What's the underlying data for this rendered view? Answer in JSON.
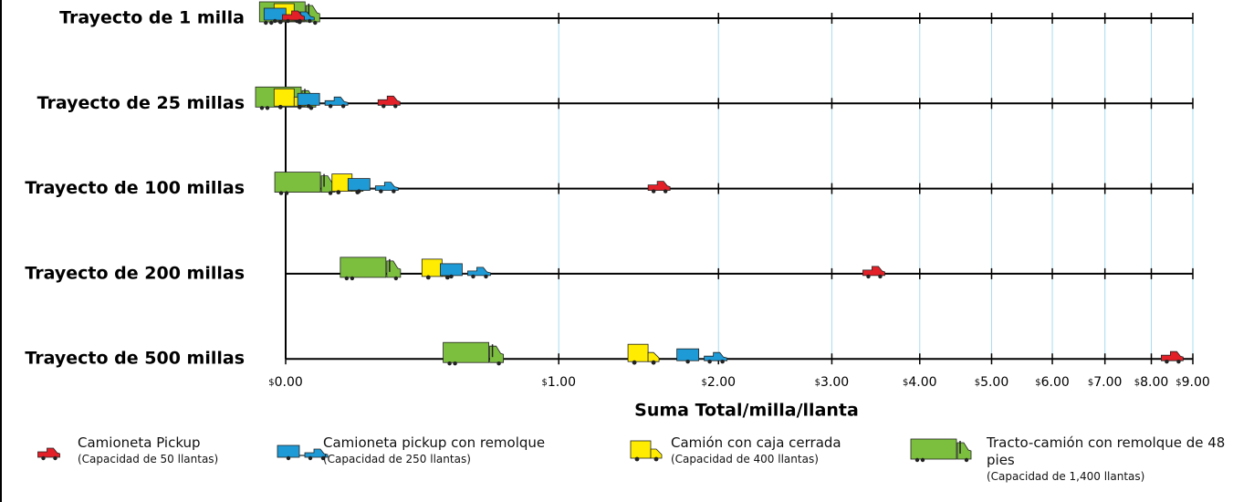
{
  "chart_data": {
    "type": "icon-dot",
    "x_label": "Suma Total/milla/llanta",
    "categories": [
      "Trayecto de 1 milla",
      "Trayecto de 25 millas",
      "Trayecto de 100 millas",
      "Trayecto de 200 millas",
      "Trayecto de 500 millas"
    ],
    "series": [
      {
        "name": "Camioneta Pickup",
        "capacity": "(Capacidad de 50 llantas)",
        "icon": "pickup",
        "color": "#e32028",
        "values": [
          0.02,
          0.3,
          1.58,
          3.45,
          8.49
        ]
      },
      {
        "name": "Camioneta pickup con remolque",
        "capacity": "(Capacidad de 250 llantas)",
        "icon": "trailer",
        "color": "#1e9ad6",
        "values": [
          0.01,
          0.1,
          0.25,
          0.58,
          1.88
        ]
      },
      {
        "name": "Camión con caja cerrada",
        "capacity": "(Capacidad de 400 llantas)",
        "icon": "box",
        "color": "#ffec00",
        "values": [
          0.01,
          0.01,
          0.17,
          0.47,
          1.48
        ]
      },
      {
        "name": "Tracto-camión con remolque de 48 pies",
        "capacity": "(Capacidad de 1,400 llantas)",
        "icon": "tractor",
        "color": "#7cbf3f",
        "values": [
          0.01,
          0,
          0.05,
          0.24,
          0.61
        ]
      }
    ],
    "xscale": "log1p",
    "xlim": [
      0,
      9
    ],
    "xticks": [
      {
        "value": 0,
        "label": "$0.00"
      },
      {
        "value": 1,
        "label": "$1.00"
      },
      {
        "value": 2,
        "label": "$2.00"
      },
      {
        "value": 3,
        "label": "$3.00"
      },
      {
        "value": 4,
        "label": "$4.00"
      },
      {
        "value": 5,
        "label": "$5.00"
      },
      {
        "value": 6,
        "label": "$6.00"
      },
      {
        "value": 7,
        "label": "$7.00"
      },
      {
        "value": 8,
        "label": "$8.00"
      },
      {
        "value": 9,
        "label": "$9.00"
      }
    ],
    "grid": true
  }
}
